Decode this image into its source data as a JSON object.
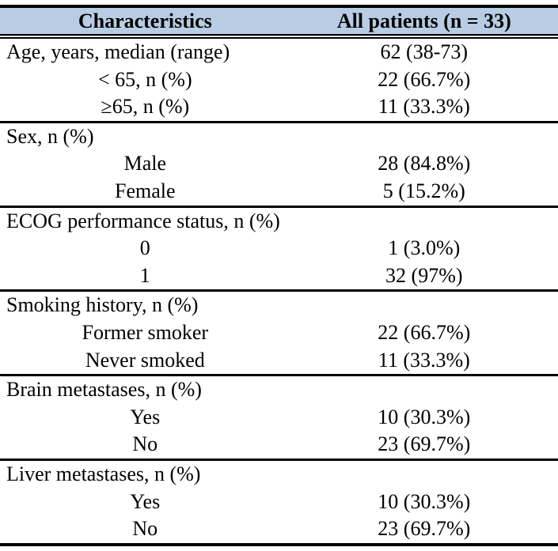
{
  "table": {
    "header": {
      "col1": "Characteristics",
      "col2": "All patients (n = 33)"
    },
    "colors": {
      "header_bg": "#b8cce4",
      "border": "#000000",
      "text": "#000000",
      "page_bg": "#ffffff"
    },
    "sections": [
      {
        "rows": [
          {
            "label": "Age, years, median (range)",
            "value": "62 (38-73)",
            "indent": false
          },
          {
            "label": "< 65, n (%)",
            "value": "22 (66.7%)",
            "indent": true
          },
          {
            "label": "≥65, n (%)",
            "value": "11 (33.3%)",
            "indent": true
          }
        ]
      },
      {
        "rows": [
          {
            "label": "Sex, n (%)",
            "value": "",
            "indent": false
          },
          {
            "label": "Male",
            "value": "28 (84.8%)",
            "indent": true
          },
          {
            "label": "Female",
            "value": "5 (15.2%)",
            "indent": true
          }
        ]
      },
      {
        "rows": [
          {
            "label": "ECOG performance status, n (%)",
            "value": "",
            "indent": false
          },
          {
            "label": "0",
            "value": "1 (3.0%)",
            "indent": true
          },
          {
            "label": "1",
            "value": "32 (97%)",
            "indent": true
          }
        ]
      },
      {
        "rows": [
          {
            "label": "Smoking history, n (%)",
            "value": "",
            "indent": false
          },
          {
            "label": "Former smoker",
            "value": "22 (66.7%)",
            "indent": true
          },
          {
            "label": "Never smoked",
            "value": "11 (33.3%)",
            "indent": true
          }
        ]
      },
      {
        "rows": [
          {
            "label": "Brain metastases, n (%)",
            "value": "",
            "indent": false
          },
          {
            "label": "Yes",
            "value": "10 (30.3%)",
            "indent": true
          },
          {
            "label": "No",
            "value": "23 (69.7%)",
            "indent": true
          }
        ]
      },
      {
        "rows": [
          {
            "label": "Liver metastases, n (%)",
            "value": "",
            "indent": false
          },
          {
            "label": "Yes",
            "value": "10 (30.3%)",
            "indent": true
          },
          {
            "label": "No",
            "value": "23 (69.7%)",
            "indent": true
          }
        ]
      }
    ]
  }
}
